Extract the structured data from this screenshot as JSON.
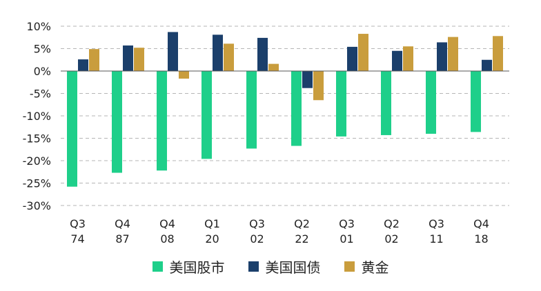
{
  "chart_data": {
    "type": "bar",
    "categories": [
      [
        "Q3",
        "74"
      ],
      [
        "Q4",
        "87"
      ],
      [
        "Q4",
        "08"
      ],
      [
        "Q1",
        "20"
      ],
      [
        "Q3",
        "02"
      ],
      [
        "Q2",
        "22"
      ],
      [
        "Q3",
        "01"
      ],
      [
        "Q2",
        "02"
      ],
      [
        "Q3",
        "11"
      ],
      [
        "Q4",
        "18"
      ]
    ],
    "series": [
      {
        "name": "美国股市",
        "color": "#1ecf8a",
        "values": [
          -25.8,
          -22.7,
          -22.2,
          -19.6,
          -17.3,
          -16.7,
          -14.6,
          -14.3,
          -14.0,
          -13.6
        ]
      },
      {
        "name": "美国国债",
        "color": "#1b3f6b",
        "values": [
          2.6,
          5.7,
          8.7,
          8.1,
          7.4,
          -3.8,
          5.4,
          4.5,
          6.4,
          2.5
        ]
      },
      {
        "name": "黄金",
        "color": "#c99d3d",
        "values": [
          4.9,
          5.2,
          -1.7,
          6.1,
          1.6,
          -6.5,
          8.3,
          5.5,
          7.6,
          7.8
        ]
      }
    ],
    "yticks": [
      "10%",
      "5%",
      "0%",
      "-5%",
      "-10%",
      "-15%",
      "-20%",
      "-25%",
      "-30%"
    ],
    "ytick_values": [
      10,
      5,
      0,
      -5,
      -10,
      -15,
      -20,
      -25,
      -30
    ],
    "ylim": [
      -30,
      10
    ],
    "grid": "horizontal-dashed",
    "legend_position": "bottom"
  }
}
